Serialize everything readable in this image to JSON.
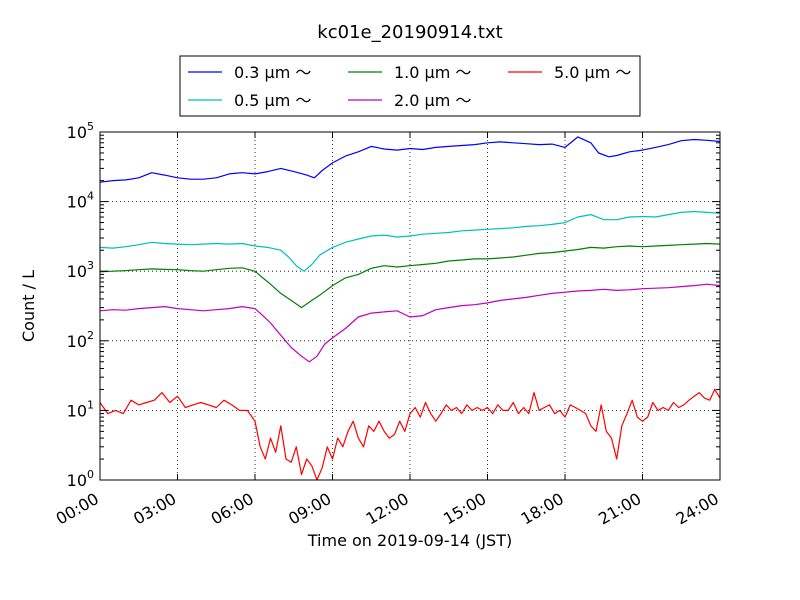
{
  "chart_data": {
    "type": "line",
    "title": "kc01e_20190914.txt",
    "xlabel": "Time on 2019-09-14 (JST)",
    "ylabel": "Count / L",
    "yscale": "log",
    "ylim": [
      1,
      100000
    ],
    "xlim": [
      0,
      24
    ],
    "grid": true,
    "legend_position": "top-center",
    "x_ticks": [
      "00:00",
      "03:00",
      "06:00",
      "09:00",
      "12:00",
      "15:00",
      "18:00",
      "21:00",
      "24:00"
    ],
    "y_ticks": [
      {
        "base": "10",
        "exp": "0"
      },
      {
        "base": "10",
        "exp": "1"
      },
      {
        "base": "10",
        "exp": "2"
      },
      {
        "base": "10",
        "exp": "3"
      },
      {
        "base": "10",
        "exp": "4"
      },
      {
        "base": "10",
        "exp": "5"
      }
    ],
    "series": [
      {
        "name": "0.3 μm ～",
        "color": "#0000ff",
        "points": [
          [
            0.0,
            19000
          ],
          [
            0.5,
            20000
          ],
          [
            1.0,
            20500
          ],
          [
            1.5,
            22000
          ],
          [
            2.0,
            26000
          ],
          [
            2.5,
            24000
          ],
          [
            3.0,
            22000
          ],
          [
            3.5,
            21000
          ],
          [
            4.0,
            21000
          ],
          [
            4.5,
            22000
          ],
          [
            5.0,
            25000
          ],
          [
            5.5,
            26000
          ],
          [
            6.0,
            25000
          ],
          [
            6.5,
            27000
          ],
          [
            7.0,
            30000
          ],
          [
            7.5,
            27000
          ],
          [
            8.0,
            24000
          ],
          [
            8.3,
            22000
          ],
          [
            8.6,
            28000
          ],
          [
            9.0,
            36000
          ],
          [
            9.5,
            45000
          ],
          [
            10.0,
            52000
          ],
          [
            10.5,
            62000
          ],
          [
            11.0,
            57000
          ],
          [
            11.5,
            55000
          ],
          [
            12.0,
            58000
          ],
          [
            12.5,
            56000
          ],
          [
            13.0,
            60000
          ],
          [
            13.5,
            62000
          ],
          [
            14.0,
            64000
          ],
          [
            14.5,
            66000
          ],
          [
            15.0,
            70000
          ],
          [
            15.5,
            72000
          ],
          [
            16.0,
            70000
          ],
          [
            16.5,
            68000
          ],
          [
            17.0,
            66000
          ],
          [
            17.5,
            67000
          ],
          [
            18.0,
            60000
          ],
          [
            18.5,
            85000
          ],
          [
            19.0,
            70000
          ],
          [
            19.3,
            50000
          ],
          [
            19.7,
            44000
          ],
          [
            20.0,
            46000
          ],
          [
            20.5,
            52000
          ],
          [
            21.0,
            55000
          ],
          [
            21.5,
            60000
          ],
          [
            22.0,
            66000
          ],
          [
            22.5,
            75000
          ],
          [
            23.0,
            78000
          ],
          [
            23.5,
            76000
          ],
          [
            24.0,
            73000
          ]
        ]
      },
      {
        "name": "0.5 μm ～",
        "color": "#00bfbf",
        "points": [
          [
            0.0,
            2200
          ],
          [
            0.5,
            2150
          ],
          [
            1.0,
            2250
          ],
          [
            1.5,
            2400
          ],
          [
            2.0,
            2600
          ],
          [
            2.5,
            2500
          ],
          [
            3.0,
            2450
          ],
          [
            3.5,
            2400
          ],
          [
            4.0,
            2450
          ],
          [
            4.5,
            2500
          ],
          [
            5.0,
            2450
          ],
          [
            5.5,
            2500
          ],
          [
            6.0,
            2300
          ],
          [
            6.5,
            2200
          ],
          [
            7.0,
            2000
          ],
          [
            7.3,
            1600
          ],
          [
            7.6,
            1200
          ],
          [
            7.9,
            1000
          ],
          [
            8.2,
            1250
          ],
          [
            8.5,
            1700
          ],
          [
            9.0,
            2200
          ],
          [
            9.5,
            2600
          ],
          [
            10.0,
            2900
          ],
          [
            10.5,
            3200
          ],
          [
            11.0,
            3300
          ],
          [
            11.5,
            3100
          ],
          [
            12.0,
            3200
          ],
          [
            12.5,
            3400
          ],
          [
            13.0,
            3500
          ],
          [
            13.5,
            3600
          ],
          [
            14.0,
            3800
          ],
          [
            14.5,
            3900
          ],
          [
            15.0,
            4000
          ],
          [
            15.5,
            4100
          ],
          [
            16.0,
            4200
          ],
          [
            16.5,
            4400
          ],
          [
            17.0,
            4500
          ],
          [
            17.5,
            4700
          ],
          [
            18.0,
            5000
          ],
          [
            18.5,
            6000
          ],
          [
            19.0,
            6500
          ],
          [
            19.5,
            5500
          ],
          [
            20.0,
            5500
          ],
          [
            20.5,
            6000
          ],
          [
            21.0,
            6100
          ],
          [
            21.5,
            6000
          ],
          [
            22.0,
            6500
          ],
          [
            22.5,
            7000
          ],
          [
            23.0,
            7200
          ],
          [
            23.5,
            7000
          ],
          [
            24.0,
            6800
          ]
        ]
      },
      {
        "name": "1.0 μm ～",
        "color": "#008000",
        "points": [
          [
            0.0,
            980
          ],
          [
            0.5,
            1000
          ],
          [
            1.0,
            1020
          ],
          [
            1.5,
            1050
          ],
          [
            2.0,
            1080
          ],
          [
            2.5,
            1060
          ],
          [
            3.0,
            1050
          ],
          [
            3.5,
            1020
          ],
          [
            4.0,
            1000
          ],
          [
            4.5,
            1050
          ],
          [
            5.0,
            1100
          ],
          [
            5.5,
            1120
          ],
          [
            6.0,
            1000
          ],
          [
            6.3,
            800
          ],
          [
            6.6,
            650
          ],
          [
            7.0,
            480
          ],
          [
            7.4,
            380
          ],
          [
            7.8,
            300
          ],
          [
            8.2,
            380
          ],
          [
            8.5,
            450
          ],
          [
            9.0,
            620
          ],
          [
            9.5,
            800
          ],
          [
            10.0,
            900
          ],
          [
            10.5,
            1100
          ],
          [
            11.0,
            1200
          ],
          [
            11.5,
            1150
          ],
          [
            12.0,
            1200
          ],
          [
            12.5,
            1250
          ],
          [
            13.0,
            1300
          ],
          [
            13.5,
            1400
          ],
          [
            14.0,
            1450
          ],
          [
            14.5,
            1500
          ],
          [
            15.0,
            1500
          ],
          [
            15.5,
            1550
          ],
          [
            16.0,
            1600
          ],
          [
            16.5,
            1700
          ],
          [
            17.0,
            1800
          ],
          [
            17.5,
            1850
          ],
          [
            18.0,
            1950
          ],
          [
            18.5,
            2050
          ],
          [
            19.0,
            2200
          ],
          [
            19.5,
            2150
          ],
          [
            20.0,
            2250
          ],
          [
            20.5,
            2300
          ],
          [
            21.0,
            2250
          ],
          [
            21.5,
            2300
          ],
          [
            22.0,
            2350
          ],
          [
            22.5,
            2400
          ],
          [
            23.0,
            2450
          ],
          [
            23.5,
            2500
          ],
          [
            24.0,
            2450
          ]
        ]
      },
      {
        "name": "2.0 μm ～",
        "color": "#bf00bf",
        "points": [
          [
            0.0,
            270
          ],
          [
            0.5,
            280
          ],
          [
            1.0,
            275
          ],
          [
            1.5,
            290
          ],
          [
            2.0,
            300
          ],
          [
            2.5,
            310
          ],
          [
            3.0,
            290
          ],
          [
            3.5,
            280
          ],
          [
            4.0,
            270
          ],
          [
            4.5,
            280
          ],
          [
            5.0,
            290
          ],
          [
            5.5,
            310
          ],
          [
            6.0,
            290
          ],
          [
            6.3,
            230
          ],
          [
            6.6,
            180
          ],
          [
            7.0,
            120
          ],
          [
            7.4,
            80
          ],
          [
            7.8,
            60
          ],
          [
            8.1,
            50
          ],
          [
            8.4,
            60
          ],
          [
            8.7,
            90
          ],
          [
            9.0,
            110
          ],
          [
            9.5,
            150
          ],
          [
            10.0,
            220
          ],
          [
            10.5,
            250
          ],
          [
            11.0,
            260
          ],
          [
            11.5,
            270
          ],
          [
            12.0,
            220
          ],
          [
            12.5,
            230
          ],
          [
            13.0,
            280
          ],
          [
            13.5,
            300
          ],
          [
            14.0,
            320
          ],
          [
            14.5,
            330
          ],
          [
            15.0,
            350
          ],
          [
            15.5,
            380
          ],
          [
            16.0,
            400
          ],
          [
            16.5,
            420
          ],
          [
            17.0,
            450
          ],
          [
            17.5,
            480
          ],
          [
            18.0,
            500
          ],
          [
            18.5,
            520
          ],
          [
            19.0,
            530
          ],
          [
            19.5,
            550
          ],
          [
            20.0,
            530
          ],
          [
            20.5,
            540
          ],
          [
            21.0,
            560
          ],
          [
            21.5,
            570
          ],
          [
            22.0,
            580
          ],
          [
            22.5,
            600
          ],
          [
            23.0,
            620
          ],
          [
            23.5,
            650
          ],
          [
            24.0,
            620
          ]
        ]
      },
      {
        "name": "5.0 μm ～",
        "color": "#ff0000",
        "points": [
          [
            0.0,
            13
          ],
          [
            0.3,
            9
          ],
          [
            0.6,
            10
          ],
          [
            0.9,
            9
          ],
          [
            1.2,
            14
          ],
          [
            1.5,
            12
          ],
          [
            1.8,
            13
          ],
          [
            2.1,
            14
          ],
          [
            2.4,
            18
          ],
          [
            2.7,
            13
          ],
          [
            3.0,
            16
          ],
          [
            3.3,
            11
          ],
          [
            3.6,
            12
          ],
          [
            3.9,
            13
          ],
          [
            4.2,
            12
          ],
          [
            4.5,
            11
          ],
          [
            4.8,
            14
          ],
          [
            5.1,
            12
          ],
          [
            5.4,
            10
          ],
          [
            5.7,
            10
          ],
          [
            6.0,
            7
          ],
          [
            6.2,
            3
          ],
          [
            6.4,
            2
          ],
          [
            6.6,
            4
          ],
          [
            6.8,
            2.5
          ],
          [
            7.0,
            6
          ],
          [
            7.2,
            2
          ],
          [
            7.4,
            1.8
          ],
          [
            7.6,
            3
          ],
          [
            7.8,
            1.2
          ],
          [
            8.0,
            2
          ],
          [
            8.2,
            1.6
          ],
          [
            8.4,
            1
          ],
          [
            8.6,
            1.5
          ],
          [
            8.8,
            3
          ],
          [
            9.0,
            2
          ],
          [
            9.2,
            4
          ],
          [
            9.4,
            3
          ],
          [
            9.6,
            5
          ],
          [
            9.8,
            7
          ],
          [
            10.0,
            4
          ],
          [
            10.2,
            3
          ],
          [
            10.4,
            6
          ],
          [
            10.6,
            5
          ],
          [
            10.8,
            7
          ],
          [
            11.0,
            5
          ],
          [
            11.2,
            4
          ],
          [
            11.4,
            4.5
          ],
          [
            11.6,
            7
          ],
          [
            11.8,
            5
          ],
          [
            12.0,
            9
          ],
          [
            12.2,
            11
          ],
          [
            12.4,
            8
          ],
          [
            12.6,
            13
          ],
          [
            12.8,
            9
          ],
          [
            13.0,
            7
          ],
          [
            13.2,
            9
          ],
          [
            13.4,
            12
          ],
          [
            13.6,
            10
          ],
          [
            13.8,
            11
          ],
          [
            14.0,
            9
          ],
          [
            14.2,
            12
          ],
          [
            14.4,
            10
          ],
          [
            14.6,
            11
          ],
          [
            14.8,
            10
          ],
          [
            15.0,
            11
          ],
          [
            15.2,
            9
          ],
          [
            15.4,
            12
          ],
          [
            15.6,
            10
          ],
          [
            15.8,
            10
          ],
          [
            16.0,
            13
          ],
          [
            16.2,
            9
          ],
          [
            16.4,
            11
          ],
          [
            16.6,
            9
          ],
          [
            16.8,
            18
          ],
          [
            17.0,
            10
          ],
          [
            17.2,
            11
          ],
          [
            17.4,
            12
          ],
          [
            17.6,
            9
          ],
          [
            17.8,
            10
          ],
          [
            18.0,
            8
          ],
          [
            18.2,
            12
          ],
          [
            18.4,
            11
          ],
          [
            18.6,
            10
          ],
          [
            18.8,
            9
          ],
          [
            19.0,
            6
          ],
          [
            19.2,
            5
          ],
          [
            19.4,
            12
          ],
          [
            19.6,
            5
          ],
          [
            19.8,
            4
          ],
          [
            20.0,
            2
          ],
          [
            20.2,
            6
          ],
          [
            20.4,
            9
          ],
          [
            20.6,
            14
          ],
          [
            20.8,
            8
          ],
          [
            21.0,
            7
          ],
          [
            21.2,
            8
          ],
          [
            21.4,
            13
          ],
          [
            21.6,
            10
          ],
          [
            21.8,
            11
          ],
          [
            22.0,
            10
          ],
          [
            22.2,
            13
          ],
          [
            22.4,
            11
          ],
          [
            22.6,
            12
          ],
          [
            22.8,
            14
          ],
          [
            23.0,
            16
          ],
          [
            23.2,
            18
          ],
          [
            23.4,
            15
          ],
          [
            23.6,
            14
          ],
          [
            23.8,
            20
          ],
          [
            24.0,
            15
          ]
        ]
      }
    ]
  }
}
